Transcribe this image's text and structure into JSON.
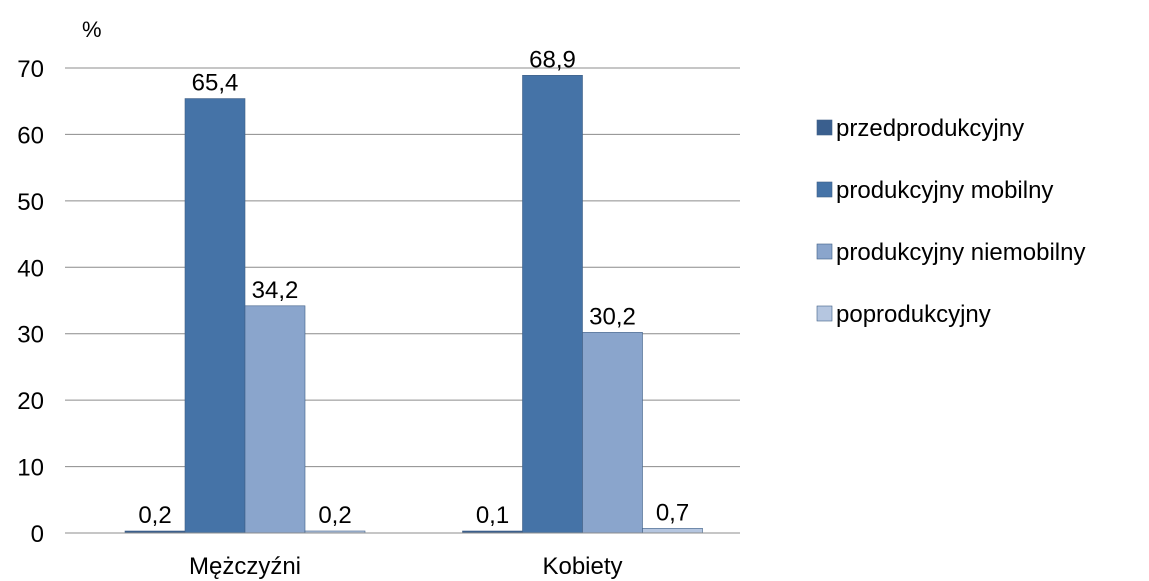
{
  "chart_data": {
    "type": "bar",
    "ylabel": "%",
    "ylim": [
      0,
      70
    ],
    "yticks": [
      "0",
      "10",
      "20",
      "30",
      "40",
      "50",
      "60",
      "70"
    ],
    "grid": true,
    "legend_position": "right",
    "categories": [
      "Mężczyźni",
      "Kobiety"
    ],
    "series": [
      {
        "name": "przedprodukcyjny",
        "values": [
          0.2,
          0.1
        ],
        "labels": [
          "0,2",
          "0,1"
        ],
        "color": "#3a5f8e"
      },
      {
        "name": "produkcyjny mobilny",
        "values": [
          65.4,
          68.9
        ],
        "labels": [
          "65,4",
          "68,9"
        ],
        "color": "#4573a7"
      },
      {
        "name": "produkcyjny niemobilny",
        "values": [
          34.2,
          30.2
        ],
        "labels": [
          "34,2",
          "30,2"
        ],
        "color": "#8aa5cc"
      },
      {
        "name": "poprodukcyjny",
        "values": [
          0.2,
          0.7
        ],
        "labels": [
          "0,2",
          "0,7"
        ],
        "color": "#b5c6e0"
      }
    ]
  }
}
